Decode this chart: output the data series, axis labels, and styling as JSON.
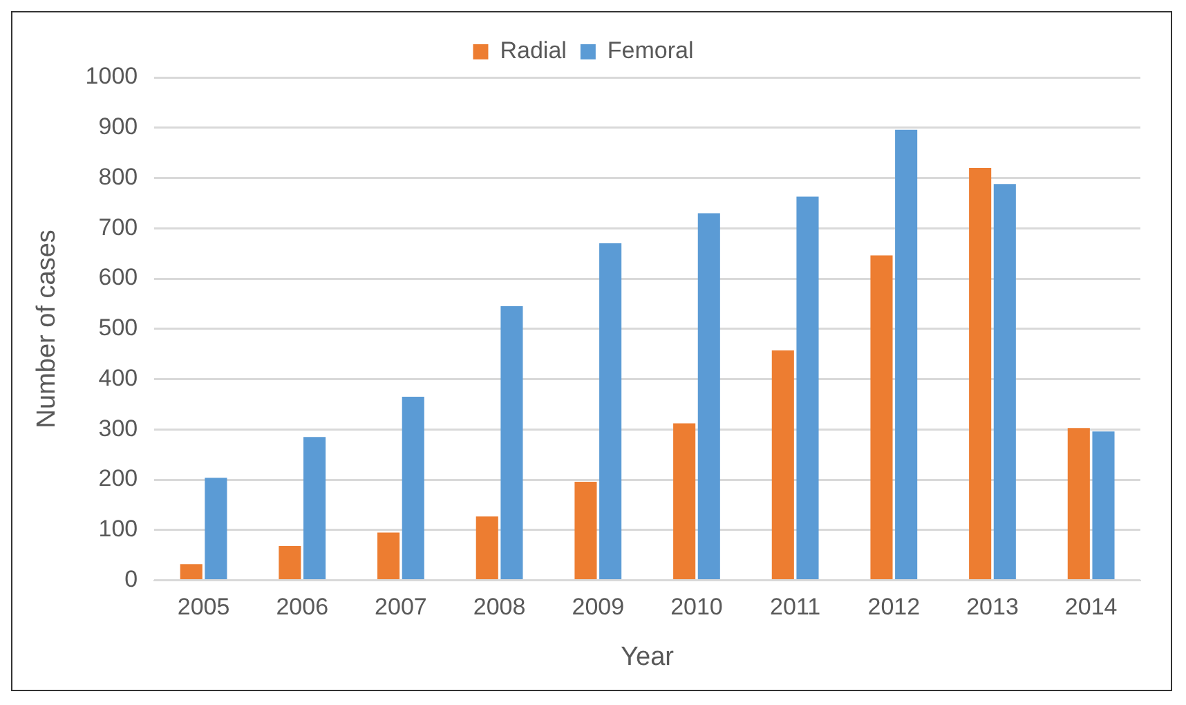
{
  "chart_data": {
    "type": "bar",
    "xlabel": "Year",
    "ylabel": "Number of cases",
    "categories": [
      "2005",
      "2006",
      "2007",
      "2008",
      "2009",
      "2010",
      "2011",
      "2012",
      "2013",
      "2014"
    ],
    "series": [
      {
        "name": "Radial",
        "color": "#ed7d31",
        "values": [
          32,
          68,
          95,
          127,
          196,
          312,
          457,
          646,
          820,
          303
        ]
      },
      {
        "name": "Femoral",
        "color": "#5b9bd5",
        "values": [
          204,
          285,
          365,
          545,
          670,
          730,
          763,
          896,
          788,
          296
        ]
      }
    ],
    "ylim": [
      0,
      1000
    ],
    "yticks": [
      0,
      100,
      200,
      300,
      400,
      500,
      600,
      700,
      800,
      900,
      1000
    ],
    "grid": "y",
    "legend": "top"
  }
}
